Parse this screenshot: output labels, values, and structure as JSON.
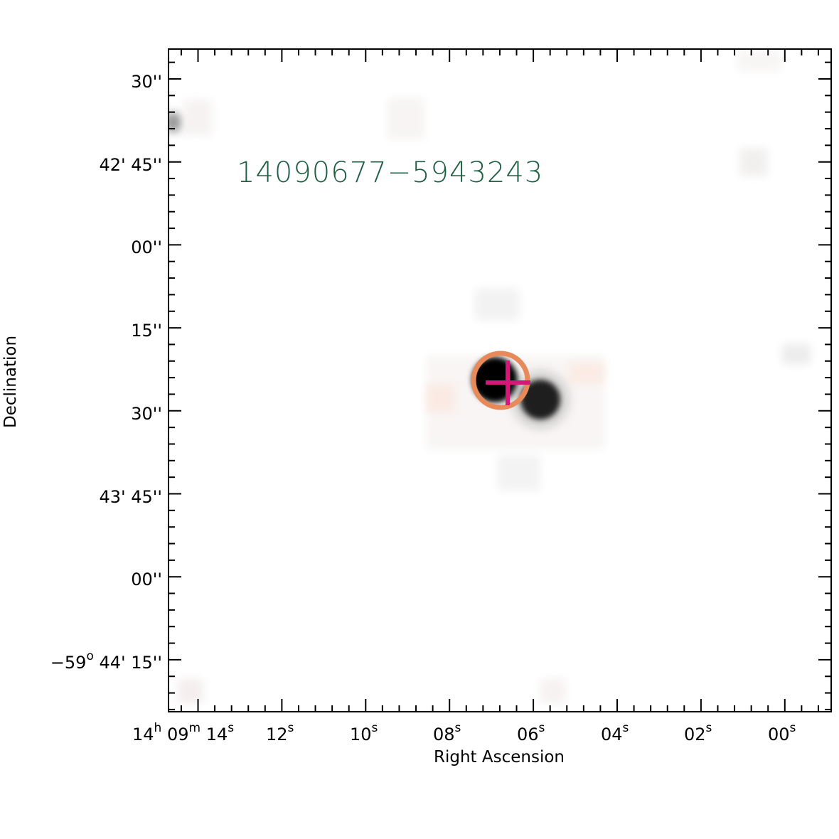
{
  "chart": {
    "source_id": "14090677−5943243",
    "x_axis_title": "Right Ascension",
    "y_axis_title": "Declination",
    "x_tick_labels": [
      {
        "main": "14",
        "sup": "h",
        "main2": " 09",
        "sup2": "m",
        "main3": " 14",
        "sup3": "s"
      },
      {
        "main": "12",
        "sup": "s"
      },
      {
        "main": "10",
        "sup": "s"
      },
      {
        "main": "08",
        "sup": "s"
      },
      {
        "main": "06",
        "sup": "s"
      },
      {
        "main": "04",
        "sup": "s"
      },
      {
        "main": "02",
        "sup": "s"
      },
      {
        "main": "00",
        "sup": "s"
      }
    ],
    "y_tick_labels": [
      {
        "text": "30''"
      },
      {
        "text": "42' 45''"
      },
      {
        "text": "00''"
      },
      {
        "text": "15''"
      },
      {
        "text": "30''"
      },
      {
        "text": "43' 45''"
      },
      {
        "text": "00''"
      },
      {
        "pre": "−59",
        "sup": "o",
        "text": " 44' 15''"
      }
    ],
    "colors": {
      "label": "#1f5f43",
      "circle": "#e8895a",
      "crosshair": "#d4187a",
      "frame": "#000000"
    }
  }
}
